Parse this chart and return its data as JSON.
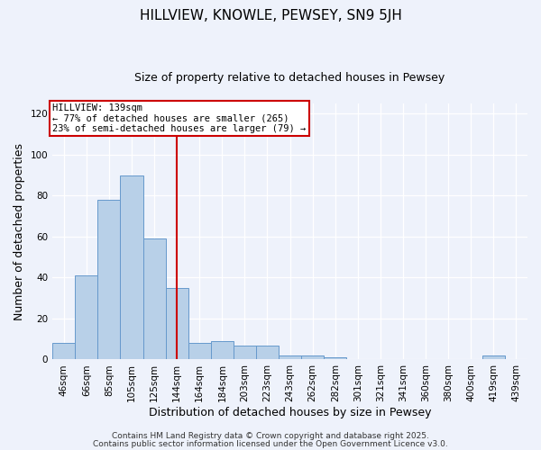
{
  "title": "HILLVIEW, KNOWLE, PEWSEY, SN9 5JH",
  "subtitle": "Size of property relative to detached houses in Pewsey",
  "xlabel": "Distribution of detached houses by size in Pewsey",
  "ylabel": "Number of detached properties",
  "bar_labels": [
    "46sqm",
    "66sqm",
    "85sqm",
    "105sqm",
    "125sqm",
    "144sqm",
    "164sqm",
    "184sqm",
    "203sqm",
    "223sqm",
    "243sqm",
    "262sqm",
    "282sqm",
    "301sqm",
    "321sqm",
    "341sqm",
    "360sqm",
    "380sqm",
    "400sqm",
    "419sqm",
    "439sqm"
  ],
  "bar_heights": [
    8,
    41,
    78,
    90,
    59,
    35,
    8,
    9,
    7,
    7,
    2,
    2,
    1,
    0,
    0,
    0,
    0,
    0,
    0,
    2,
    0
  ],
  "bar_color": "#b8d0e8",
  "bar_edge_color": "#6699cc",
  "vline_x_idx": 5,
  "vline_color": "#cc0000",
  "annotation_line1": "HILLVIEW: 139sqm",
  "annotation_line2": "← 77% of detached houses are smaller (265)",
  "annotation_line3": "23% of semi-detached houses are larger (79) →",
  "annotation_box_color": "#ffffff",
  "annotation_box_edge": "#cc0000",
  "ylim": [
    0,
    125
  ],
  "yticks": [
    0,
    20,
    40,
    60,
    80,
    100,
    120
  ],
  "footer1": "Contains HM Land Registry data © Crown copyright and database right 2025.",
  "footer2": "Contains public sector information licensed under the Open Government Licence v3.0.",
  "bg_color": "#eef2fb",
  "plot_bg_color": "#eef2fb",
  "title_fontsize": 11,
  "subtitle_fontsize": 9,
  "axis_label_fontsize": 9,
  "tick_fontsize": 7.5,
  "footer_fontsize": 6.5
}
